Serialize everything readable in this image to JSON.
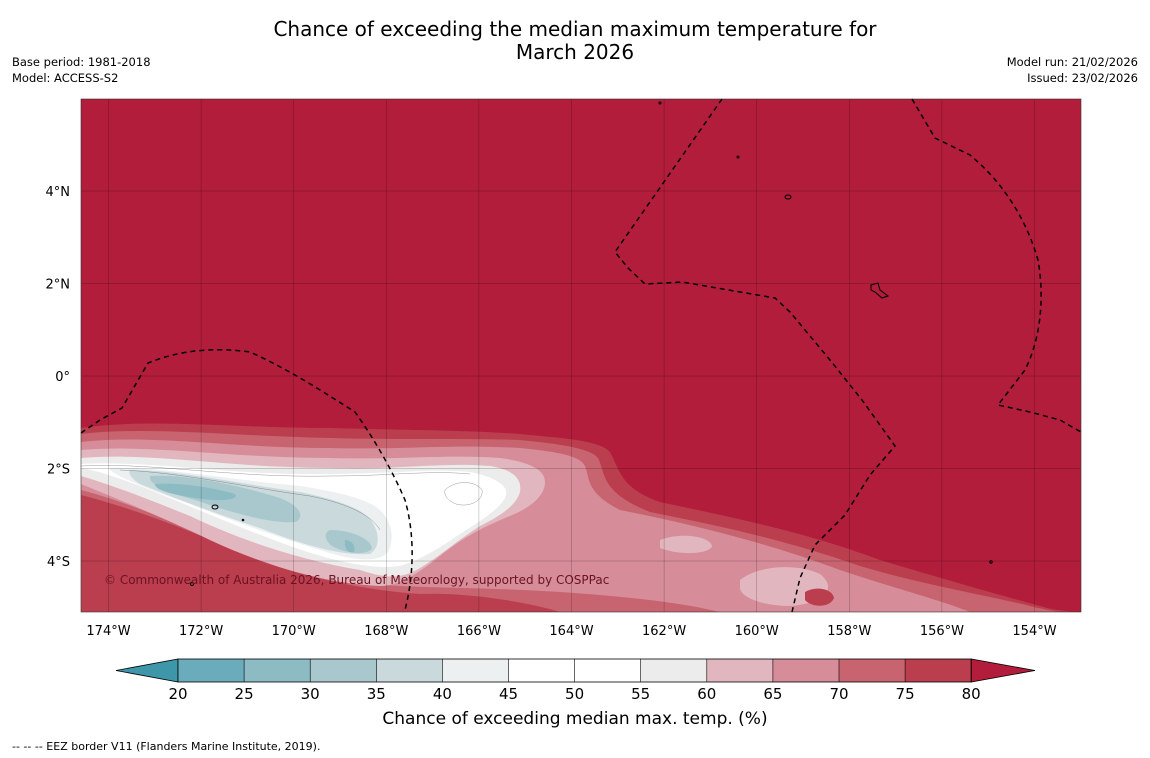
{
  "title_line1": "Chance of exceeding the median maximum temperature for",
  "title_line2": "March 2026",
  "meta_left": [
    "Base period: 1981-2018",
    "Model: ACCESS-S2"
  ],
  "meta_right": [
    "Model run: 21/02/2026",
    "Issued: 23/02/2026"
  ],
  "map": {
    "lon_ticks": [
      "174°W",
      "172°W",
      "170°W",
      "168°W",
      "166°W",
      "164°W",
      "162°W",
      "160°W",
      "158°W",
      "156°W",
      "154°W"
    ],
    "lat_ticks": [
      "4°N",
      "2°N",
      "0°",
      "2°S",
      "4°S"
    ],
    "copyright": "© Commonwealth of Australia 2026, Bureau of Meteorology, supported by COSPPac",
    "background_color": "#b11d3a"
  },
  "colorbar": {
    "label": "Chance of exceeding median max. temp. (%)",
    "ticks": [
      "20",
      "25",
      "30",
      "35",
      "40",
      "45",
      "50",
      "55",
      "60",
      "65",
      "70",
      "75",
      "80"
    ],
    "colors": [
      "#3e97a8",
      "#6aacbb",
      "#8cbbc4",
      "#a9c8cd",
      "#c9d9dc",
      "#ecf0f1",
      "#ffffff",
      "#ffffff",
      "#ececec",
      "#e2b6be",
      "#d68d99",
      "#c8646f",
      "#bb3e4e",
      "#b11d3a"
    ]
  },
  "legend_note": "--  --  -- EEZ border V11 (Flanders Marine Institute, 2019)."
}
